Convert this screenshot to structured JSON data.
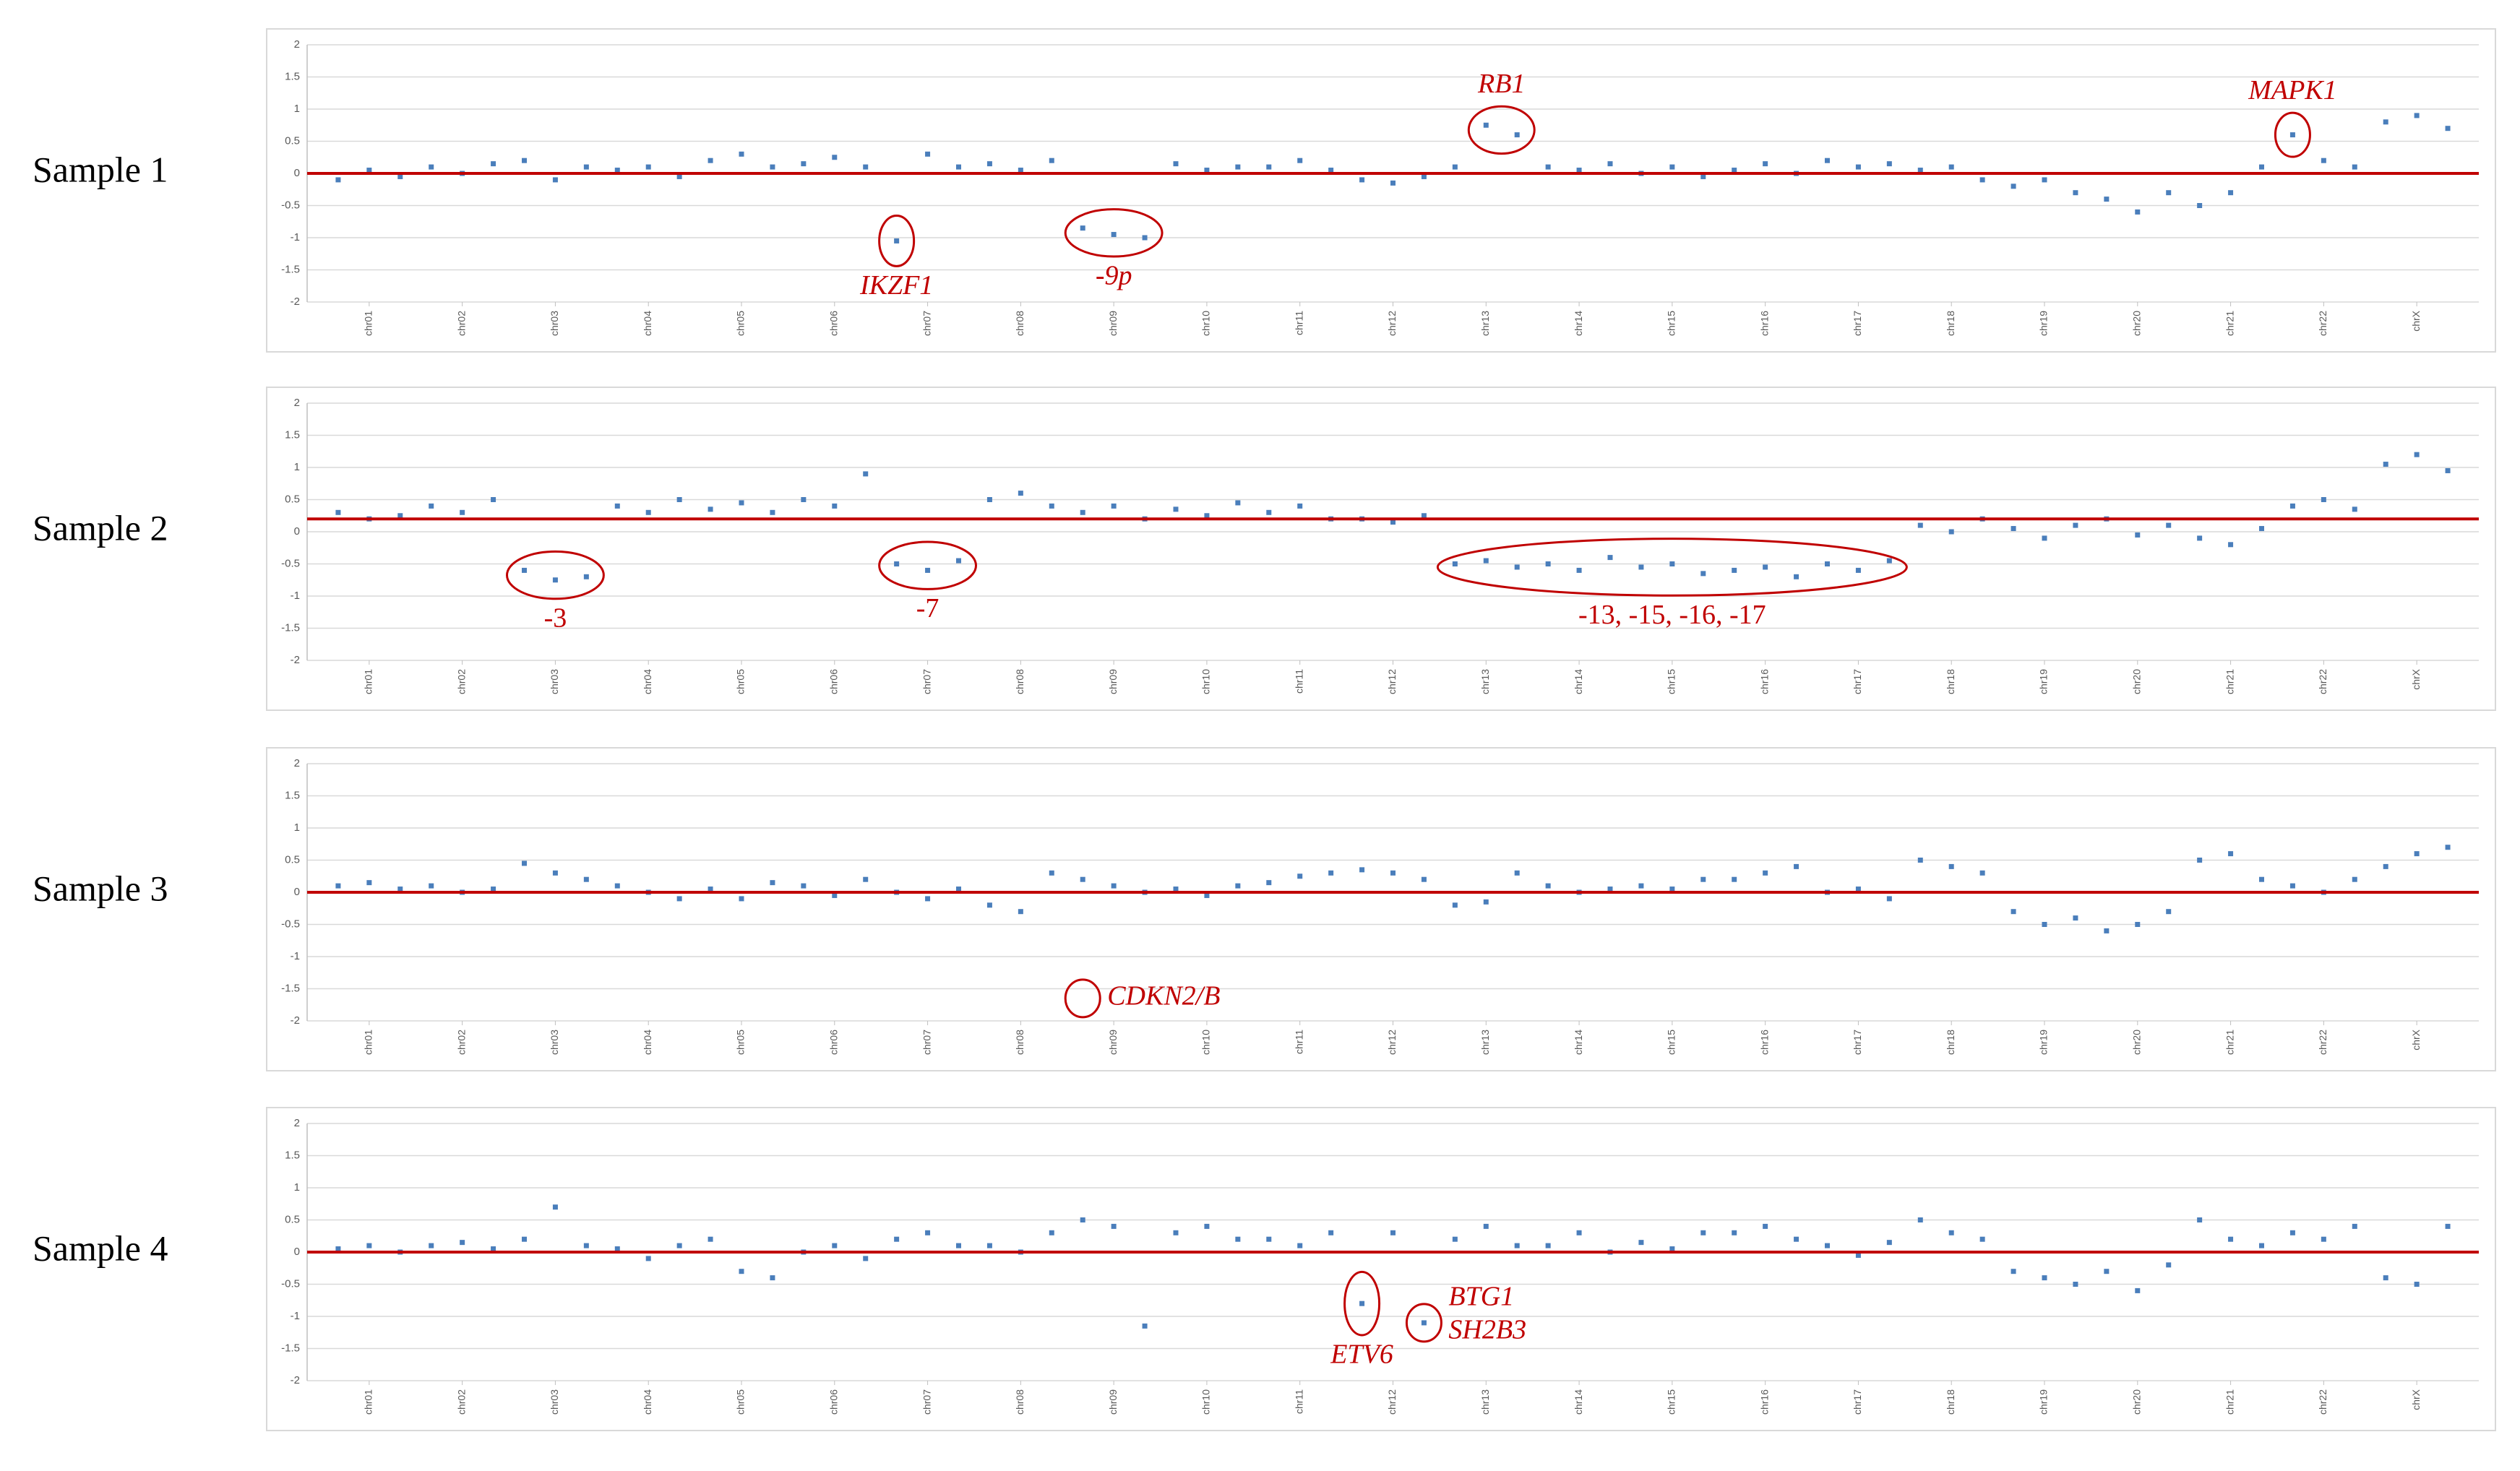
{
  "chart_data": [
    {
      "type": "scatter",
      "label": "Sample 1",
      "color": "#4a7ebb",
      "grid": true,
      "reference_line": {
        "value": 0,
        "color": "#c00000"
      },
      "xlim": [
        0,
        70
      ],
      "ylim": [
        -2,
        2
      ],
      "yticks": [
        -2,
        -1.5,
        -1,
        -0.5,
        0,
        0.5,
        1,
        1.5,
        2
      ],
      "xticks": [
        {
          "value": 2,
          "label": "chr01"
        },
        {
          "value": 5,
          "label": "chr02"
        },
        {
          "value": 8,
          "label": "chr03"
        },
        {
          "value": 11,
          "label": "chr04"
        },
        {
          "value": 14,
          "label": "chr05"
        },
        {
          "value": 17,
          "label": "chr06"
        },
        {
          "value": 20,
          "label": "chr07"
        },
        {
          "value": 23,
          "label": "chr08"
        },
        {
          "value": 26,
          "label": "chr09"
        },
        {
          "value": 29,
          "label": "chr10"
        },
        {
          "value": 32,
          "label": "chr11"
        },
        {
          "value": 35,
          "label": "chr12"
        },
        {
          "value": 38,
          "label": "chr13"
        },
        {
          "value": 41,
          "label": "chr14"
        },
        {
          "value": 44,
          "label": "chr15"
        },
        {
          "value": 47,
          "label": "chr16"
        },
        {
          "value": 50,
          "label": "chr17"
        },
        {
          "value": 53,
          "label": "chr18"
        },
        {
          "value": 56,
          "label": "chr19"
        },
        {
          "value": 59,
          "label": "chr20"
        },
        {
          "value": 62,
          "label": "chr21"
        },
        {
          "value": 65,
          "label": "chr22"
        },
        {
          "value": 68,
          "label": "chrX"
        }
      ],
      "x": [
        1,
        2,
        3,
        4,
        5,
        6,
        7,
        8,
        9,
        10,
        11,
        12,
        13,
        14,
        15,
        16,
        17,
        18,
        19,
        20,
        21,
        22,
        23,
        24,
        25,
        26,
        27,
        28,
        29,
        30,
        31,
        32,
        33,
        34,
        35,
        36,
        37,
        38,
        39,
        40,
        41,
        42,
        43,
        44,
        45,
        46,
        47,
        48,
        49,
        50,
        51,
        52,
        53,
        54,
        55,
        56,
        57,
        58,
        59,
        60,
        61,
        62,
        63,
        64,
        65,
        66,
        67,
        68,
        69
      ],
      "values": [
        -0.1,
        0.05,
        -0.05,
        0.1,
        0,
        0.15,
        0.2,
        -0.1,
        0.1,
        0.05,
        0.1,
        -0.05,
        0.2,
        0.3,
        0.1,
        0.15,
        0.25,
        0.1,
        -1.05,
        0.3,
        0.1,
        0.15,
        0.05,
        0.2,
        -0.85,
        -0.95,
        -1.0,
        0.15,
        0.05,
        0.1,
        0.1,
        0.2,
        0.05,
        -0.1,
        -0.15,
        -0.05,
        0.1,
        0.75,
        0.6,
        0.1,
        0.05,
        0.15,
        0,
        0.1,
        -0.05,
        0.05,
        0.15,
        0,
        0.2,
        0.1,
        0.15,
        0.05,
        0.1,
        -0.1,
        -0.2,
        -0.1,
        -0.3,
        -0.4,
        -0.6,
        -0.3,
        -0.5,
        -0.3,
        0.1,
        0.6,
        0.2,
        0.1,
        0.8,
        0.9,
        0.7
      ],
      "annotations": [
        {
          "lines": [
            "IKZF1"
          ],
          "italic": true,
          "label_side": "below",
          "x0": 19,
          "x1": 19,
          "y0": -1.15,
          "y1": -0.95
        },
        {
          "lines": [
            "-9p"
          ],
          "italic": true,
          "label_side": "below",
          "x0": 25,
          "x1": 27,
          "y0": -1.0,
          "y1": -0.85
        },
        {
          "lines": [
            "RB1"
          ],
          "italic": true,
          "label_side": "above",
          "x0": 38,
          "x1": 39,
          "y0": 0.6,
          "y1": 0.75
        },
        {
          "lines": [
            "MAPK1"
          ],
          "italic": true,
          "label_side": "above",
          "x0": 64,
          "x1": 64,
          "y0": 0.55,
          "y1": 0.65
        }
      ]
    },
    {
      "type": "scatter",
      "label": "Sample 2",
      "color": "#4a7ebb",
      "grid": true,
      "reference_line": {
        "value": 0.2,
        "color": "#c00000"
      },
      "xlim": [
        0,
        70
      ],
      "ylim": [
        -2,
        2
      ],
      "yticks": [
        -2,
        -1.5,
        -1,
        -0.5,
        0,
        0.5,
        1,
        1.5,
        2
      ],
      "xticks": [
        {
          "value": 2,
          "label": "chr01"
        },
        {
          "value": 5,
          "label": "chr02"
        },
        {
          "value": 8,
          "label": "chr03"
        },
        {
          "value": 11,
          "label": "chr04"
        },
        {
          "value": 14,
          "label": "chr05"
        },
        {
          "value": 17,
          "label": "chr06"
        },
        {
          "value": 20,
          "label": "chr07"
        },
        {
          "value": 23,
          "label": "chr08"
        },
        {
          "value": 26,
          "label": "chr09"
        },
        {
          "value": 29,
          "label": "chr10"
        },
        {
          "value": 32,
          "label": "chr11"
        },
        {
          "value": 35,
          "label": "chr12"
        },
        {
          "value": 38,
          "label": "chr13"
        },
        {
          "value": 41,
          "label": "chr14"
        },
        {
          "value": 44,
          "label": "chr15"
        },
        {
          "value": 47,
          "label": "chr16"
        },
        {
          "value": 50,
          "label": "chr17"
        },
        {
          "value": 53,
          "label": "chr18"
        },
        {
          "value": 56,
          "label": "chr19"
        },
        {
          "value": 59,
          "label": "chr20"
        },
        {
          "value": 62,
          "label": "chr21"
        },
        {
          "value": 65,
          "label": "chr22"
        },
        {
          "value": 68,
          "label": "chrX"
        }
      ],
      "x": [
        1,
        2,
        3,
        4,
        5,
        6,
        7,
        8,
        9,
        10,
        11,
        12,
        13,
        14,
        15,
        16,
        17,
        18,
        19,
        20,
        21,
        22,
        23,
        24,
        25,
        26,
        27,
        28,
        29,
        30,
        31,
        32,
        33,
        34,
        35,
        36,
        37,
        38,
        39,
        40,
        41,
        42,
        43,
        44,
        45,
        46,
        47,
        48,
        49,
        50,
        51,
        52,
        53,
        54,
        55,
        56,
        57,
        58,
        59,
        60,
        61,
        62,
        63,
        64,
        65,
        66,
        67,
        68,
        69
      ],
      "values": [
        0.3,
        0.2,
        0.25,
        0.4,
        0.3,
        0.5,
        -0.6,
        -0.75,
        -0.7,
        0.4,
        0.3,
        0.5,
        0.35,
        0.45,
        0.3,
        0.5,
        0.4,
        0.9,
        -0.5,
        -0.6,
        -0.45,
        0.5,
        0.6,
        0.4,
        0.3,
        0.4,
        0.2,
        0.35,
        0.25,
        0.45,
        0.3,
        0.4,
        0.2,
        0.2,
        0.15,
        0.25,
        -0.5,
        -0.45,
        -0.55,
        -0.5,
        -0.6,
        -0.4,
        -0.55,
        -0.5,
        -0.65,
        -0.6,
        -0.55,
        -0.7,
        -0.5,
        -0.6,
        -0.45,
        0.1,
        0,
        0.2,
        0.05,
        -0.1,
        0.1,
        0.2,
        -0.05,
        0.1,
        -0.1,
        -0.2,
        0.05,
        0.4,
        0.5,
        0.35,
        1.05,
        1.2,
        0.95
      ],
      "annotations": [
        {
          "lines": [
            "-3"
          ],
          "italic": false,
          "label_side": "below",
          "x0": 7,
          "x1": 9,
          "y0": -0.75,
          "y1": -0.6
        },
        {
          "lines": [
            "-7"
          ],
          "italic": false,
          "label_side": "below",
          "x0": 19,
          "x1": 21,
          "y0": -0.6,
          "y1": -0.45
        },
        {
          "lines": [
            "-13, -15, -16, -17"
          ],
          "italic": false,
          "label_side": "below",
          "x0": 37,
          "x1": 51,
          "y0": -0.7,
          "y1": -0.4
        }
      ]
    },
    {
      "type": "scatter",
      "label": "Sample 3",
      "color": "#4a7ebb",
      "grid": true,
      "reference_line": {
        "value": 0,
        "color": "#c00000"
      },
      "xlim": [
        0,
        70
      ],
      "ylim": [
        -2,
        2
      ],
      "yticks": [
        -2,
        -1.5,
        -1,
        -0.5,
        0,
        0.5,
        1,
        1.5,
        2
      ],
      "xticks": [
        {
          "value": 2,
          "label": "chr01"
        },
        {
          "value": 5,
          "label": "chr02"
        },
        {
          "value": 8,
          "label": "chr03"
        },
        {
          "value": 11,
          "label": "chr04"
        },
        {
          "value": 14,
          "label": "chr05"
        },
        {
          "value": 17,
          "label": "chr06"
        },
        {
          "value": 20,
          "label": "chr07"
        },
        {
          "value": 23,
          "label": "chr08"
        },
        {
          "value": 26,
          "label": "chr09"
        },
        {
          "value": 29,
          "label": "chr10"
        },
        {
          "value": 32,
          "label": "chr11"
        },
        {
          "value": 35,
          "label": "chr12"
        },
        {
          "value": 38,
          "label": "chr13"
        },
        {
          "value": 41,
          "label": "chr14"
        },
        {
          "value": 44,
          "label": "chr15"
        },
        {
          "value": 47,
          "label": "chr16"
        },
        {
          "value": 50,
          "label": "chr17"
        },
        {
          "value": 53,
          "label": "chr18"
        },
        {
          "value": 56,
          "label": "chr19"
        },
        {
          "value": 59,
          "label": "chr20"
        },
        {
          "value": 62,
          "label": "chr21"
        },
        {
          "value": 65,
          "label": "chr22"
        },
        {
          "value": 68,
          "label": "chrX"
        }
      ],
      "x": [
        1,
        2,
        3,
        4,
        5,
        6,
        7,
        8,
        9,
        10,
        11,
        12,
        13,
        14,
        15,
        16,
        17,
        18,
        19,
        20,
        21,
        22,
        23,
        24,
        25,
        26,
        27,
        28,
        29,
        30,
        31,
        32,
        33,
        34,
        35,
        36,
        37,
        38,
        39,
        40,
        41,
        42,
        43,
        44,
        45,
        46,
        47,
        48,
        49,
        50,
        51,
        52,
        53,
        54,
        55,
        56,
        57,
        58,
        59,
        60,
        61,
        62,
        63,
        64,
        65,
        66,
        67,
        68,
        69
      ],
      "values": [
        0.1,
        0.15,
        0.05,
        0.1,
        0,
        0.05,
        0.45,
        0.3,
        0.2,
        0.1,
        0,
        -0.1,
        0.05,
        -0.1,
        0.15,
        0.1,
        -0.05,
        0.2,
        0,
        -0.1,
        0.05,
        -0.2,
        -0.3,
        0.3,
        0.2,
        0.1,
        0,
        0.05,
        -0.05,
        0.1,
        0.15,
        0.25,
        0.3,
        0.35,
        0.3,
        0.2,
        -0.2,
        -0.15,
        0.3,
        0.1,
        0,
        0.05,
        0.1,
        0.05,
        0.2,
        0.2,
        0.3,
        0.4,
        0,
        0.05,
        -0.1,
        0.5,
        0.4,
        0.3,
        -0.3,
        -0.5,
        -0.4,
        -0.6,
        -0.5,
        -0.3,
        0.5,
        0.6,
        0.2,
        0.1,
        0,
        0.2,
        0.4,
        0.6,
        0.7
      ],
      "annotations": [
        {
          "lines": [
            "CDKN2/B"
          ],
          "italic": true,
          "label_side": "right",
          "x0": 25,
          "x1": 25,
          "y0": -1.65,
          "y1": -1.65
        }
      ]
    },
    {
      "type": "scatter",
      "label": "Sample 4",
      "color": "#4a7ebb",
      "grid": true,
      "reference_line": {
        "value": 0,
        "color": "#c00000"
      },
      "xlim": [
        0,
        70
      ],
      "ylim": [
        -2,
        2
      ],
      "yticks": [
        -2,
        -1.5,
        -1,
        -0.5,
        0,
        0.5,
        1,
        1.5,
        2
      ],
      "xticks": [
        {
          "value": 2,
          "label": "chr01"
        },
        {
          "value": 5,
          "label": "chr02"
        },
        {
          "value": 8,
          "label": "chr03"
        },
        {
          "value": 11,
          "label": "chr04"
        },
        {
          "value": 14,
          "label": "chr05"
        },
        {
          "value": 17,
          "label": "chr06"
        },
        {
          "value": 20,
          "label": "chr07"
        },
        {
          "value": 23,
          "label": "chr08"
        },
        {
          "value": 26,
          "label": "chr09"
        },
        {
          "value": 29,
          "label": "chr10"
        },
        {
          "value": 32,
          "label": "chr11"
        },
        {
          "value": 35,
          "label": "chr12"
        },
        {
          "value": 38,
          "label": "chr13"
        },
        {
          "value": 41,
          "label": "chr14"
        },
        {
          "value": 44,
          "label": "chr15"
        },
        {
          "value": 47,
          "label": "chr16"
        },
        {
          "value": 50,
          "label": "chr17"
        },
        {
          "value": 53,
          "label": "chr18"
        },
        {
          "value": 56,
          "label": "chr19"
        },
        {
          "value": 59,
          "label": "chr20"
        },
        {
          "value": 62,
          "label": "chr21"
        },
        {
          "value": 65,
          "label": "chr22"
        },
        {
          "value": 68,
          "label": "chrX"
        }
      ],
      "x": [
        1,
        2,
        3,
        4,
        5,
        6,
        7,
        8,
        9,
        10,
        11,
        12,
        13,
        14,
        15,
        16,
        17,
        18,
        19,
        20,
        21,
        22,
        23,
        24,
        25,
        26,
        27,
        28,
        29,
        30,
        31,
        32,
        33,
        34,
        35,
        36,
        37,
        38,
        39,
        40,
        41,
        42,
        43,
        44,
        45,
        46,
        47,
        48,
        49,
        50,
        51,
        52,
        53,
        54,
        55,
        56,
        57,
        58,
        59,
        60,
        61,
        62,
        63,
        64,
        65,
        66,
        67,
        68,
        69
      ],
      "values": [
        0.05,
        0.1,
        0,
        0.1,
        0.15,
        0.05,
        0.2,
        0.7,
        0.1,
        0.05,
        -0.1,
        0.1,
        0.2,
        -0.3,
        -0.4,
        0,
        0.1,
        -0.1,
        0.2,
        0.3,
        0.1,
        0.1,
        0,
        0.3,
        0.5,
        0.4,
        -1.15,
        0.3,
        0.4,
        0.2,
        0.2,
        0.1,
        0.3,
        -0.8,
        0.3,
        -1.1,
        0.2,
        0.4,
        0.1,
        0.1,
        0.3,
        0,
        0.15,
        0.05,
        0.3,
        0.3,
        0.4,
        0.2,
        0.1,
        -0.05,
        0.15,
        0.5,
        0.3,
        0.2,
        -0.3,
        -0.4,
        -0.5,
        -0.3,
        -0.6,
        -0.2,
        0.5,
        0.2,
        0.1,
        0.3,
        0.2,
        0.4,
        -0.4,
        -0.5,
        0.4
      ],
      "annotations": [
        {
          "lines": [
            "ETV6"
          ],
          "italic": true,
          "label_side": "below",
          "x0": 34,
          "x1": 34,
          "y0": -1.0,
          "y1": -0.6
        },
        {
          "lines": [
            "BTG1",
            "SH2B3"
          ],
          "italic": true,
          "label_side": "right",
          "x0": 36,
          "x1": 36,
          "y0": -1.1,
          "y1": -1.1
        }
      ]
    }
  ]
}
